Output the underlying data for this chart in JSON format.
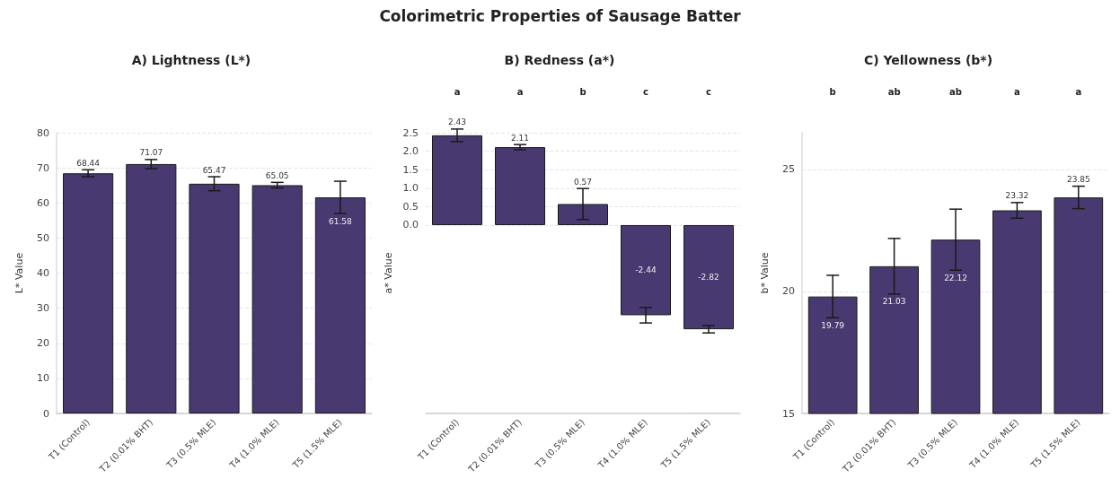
{
  "chart_data": [
    {
      "type": "bar",
      "title": "A) Lightness (L*)",
      "ylabel": "L* Value",
      "annotations": [
        "Colorimetric Properties of Sausage Batter"
      ],
      "categories": [
        "T1 (Control)",
        "T2 (0.01% BHT)",
        "T3 (0.5% MLE)",
        "T4 (1.0% MLE)",
        "T5 (1.5% MLE)"
      ],
      "values": [
        68.44,
        71.07,
        65.47,
        65.05,
        61.58
      ],
      "errors": [
        1.0,
        1.3,
        2.0,
        0.8,
        4.6
      ],
      "color": "#483a70",
      "ylim": [
        0,
        80
      ],
      "yticks": [
        0,
        10,
        20,
        30,
        40,
        50,
        60,
        70,
        80
      ],
      "grid": "y",
      "data_labels": true
    },
    {
      "type": "bar",
      "title": "B) Redness (a*)",
      "ylabel": "a* Value",
      "categories": [
        "T1 (Control)",
        "T2 (0.01% BHT)",
        "T3 (0.5% MLE)",
        "T4 (1.0% MLE)",
        "T5 (1.5% MLE)"
      ],
      "values": [
        2.43,
        2.11,
        0.57,
        -2.44,
        -2.82
      ],
      "errors": [
        0.17,
        0.07,
        0.42,
        0.21,
        0.1
      ],
      "color": "#483a70",
      "ylim": [
        -5.1,
        2.5
      ],
      "yticks": [
        {
          "value": 0,
          "label": "0.0"
        },
        0.5,
        {
          "value": 1,
          "label": "1.0"
        },
        1.5,
        {
          "value": 2,
          "label": "2.0"
        },
        2.5
      ],
      "grid": "y",
      "data_labels": true,
      "annotations": [
        "a",
        "a",
        "b",
        "c",
        "c"
      ]
    },
    {
      "type": "bar",
      "title": "C) Yellowness (b*)",
      "ylabel": "b* Value",
      "categories": [
        "T1 (Control)",
        "T2 (0.01% BHT)",
        "T3 (0.5% MLE)",
        "T4 (1.0% MLE)",
        "T5 (1.5% MLE)"
      ],
      "values": [
        19.79,
        21.03,
        22.12,
        23.32,
        23.85
      ],
      "errors": [
        0.87,
        1.14,
        1.25,
        0.32,
        0.46
      ],
      "color": "#483a70",
      "ylim": [
        15,
        26.5
      ],
      "yticks": [
        15,
        20,
        25
      ],
      "grid": "y",
      "data_labels": true,
      "annotations": [
        "b",
        "ab",
        "ab",
        "a",
        "a"
      ]
    }
  ]
}
